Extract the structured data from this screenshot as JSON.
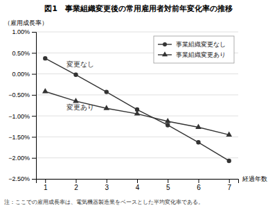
{
  "chart_data": {
    "type": "line",
    "title": "図1　事業組織変更後の常用雇用者対前年変化率の推移",
    "y_label": "（雇用成長率）",
    "x_label": "経過年数",
    "x": [
      1,
      2,
      3,
      4,
      5,
      6,
      7
    ],
    "series": [
      {
        "name": "事業組織変更なし",
        "color": "#333333",
        "marker": "circle",
        "values": [
          0.0037,
          -0.0002,
          -0.0043,
          -0.0085,
          -0.0122,
          -0.0163,
          -0.0207
        ]
      },
      {
        "name": "事業組織変更あり",
        "color": "#333333",
        "marker": "triangle",
        "values": [
          -0.0042,
          -0.0065,
          -0.0082,
          -0.0095,
          -0.0113,
          -0.0127,
          -0.0145
        ]
      }
    ],
    "annotations": [
      {
        "text": "変更なし",
        "x": 1.7,
        "y": 0.0018
      },
      {
        "text": "変更あり",
        "x": 1.7,
        "y": -0.0085
      }
    ],
    "footnote": "注：ここでの雇用成長率は、電気機器製造業をベースとした平均変化率である。",
    "xlim": [
      0.7,
      7.3
    ],
    "xticks": [
      1,
      2,
      3,
      4,
      5,
      6,
      7
    ],
    "ylim": [
      -0.025,
      0.01
    ],
    "yticks": [
      {
        "value": 0.01,
        "label": "1.00%"
      },
      {
        "value": 0.005,
        "label": "0.50%"
      },
      {
        "value": 0.0,
        "label": "0.00%"
      },
      {
        "value": -0.005,
        "label": "−0.50%"
      },
      {
        "value": -0.01,
        "label": "−1.00%"
      },
      {
        "value": -0.015,
        "label": "−1.50%"
      },
      {
        "value": -0.02,
        "label": "−2.00%"
      },
      {
        "value": -0.025,
        "label": "−2.50%"
      }
    ],
    "grid": true,
    "legend": "upper right"
  }
}
